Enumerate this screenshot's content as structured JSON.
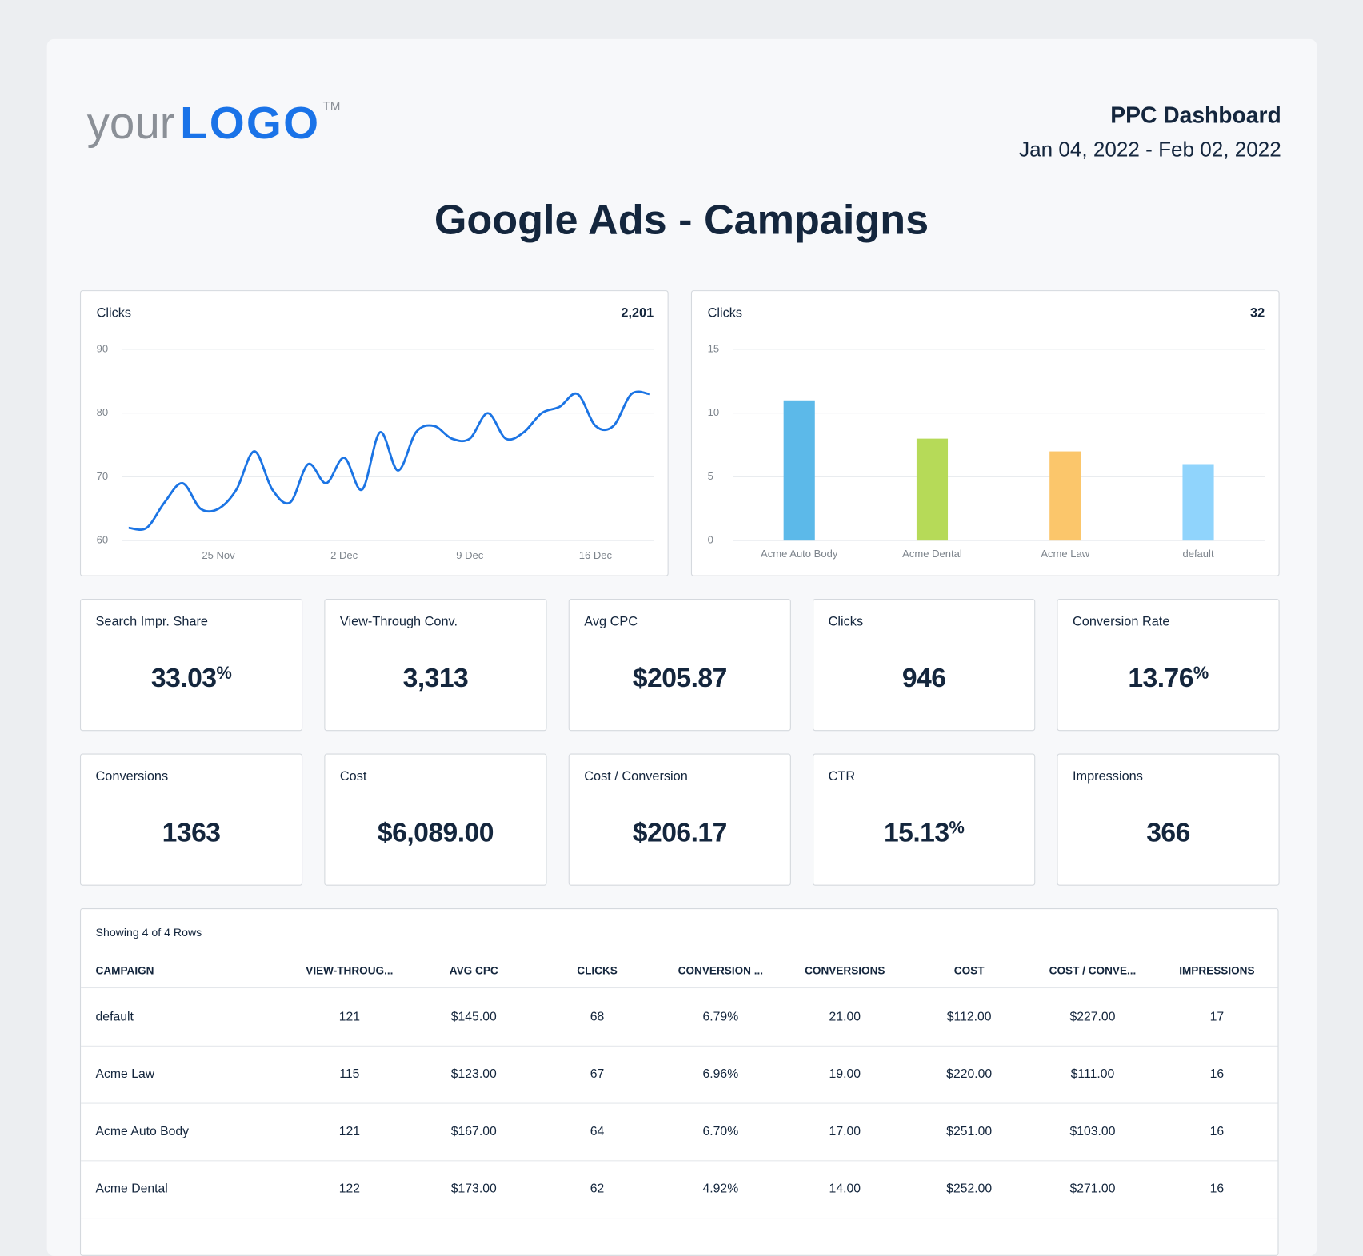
{
  "header": {
    "logo": {
      "your": "your",
      "logo": "LOGO",
      "tm": "TM"
    },
    "report_name": "PPC Dashboard",
    "date_range": "Jan 04, 2022 - Feb 02, 2022"
  },
  "title": "Google Ads - Campaigns",
  "chart_data": [
    {
      "type": "line",
      "title": "Clicks",
      "total": "2,201",
      "color": "#1b74e4",
      "grid": true,
      "categories": [
        null,
        null,
        null,
        null,
        null,
        "25 Nov",
        null,
        null,
        null,
        null,
        null,
        null,
        "2 Dec",
        null,
        null,
        null,
        null,
        null,
        null,
        "9 Dec",
        null,
        null,
        null,
        null,
        null,
        null,
        "16 Dec",
        null,
        null,
        null
      ],
      "values": [
        62,
        62,
        66,
        69,
        65,
        65,
        68,
        74,
        68,
        66,
        72,
        69,
        73,
        68,
        77,
        71,
        77,
        78,
        76,
        76,
        80,
        76,
        77,
        80,
        81,
        83,
        78,
        78,
        83,
        83
      ],
      "ylim": [
        60,
        90
      ],
      "yticks": [
        60,
        70,
        80,
        90
      ]
    },
    {
      "type": "bar",
      "title": "Clicks",
      "total": "32",
      "grid": true,
      "categories": [
        "Acme Auto Body",
        "Acme Dental",
        "Acme Law",
        "default"
      ],
      "values": [
        11,
        8,
        7,
        6
      ],
      "colors": [
        "#5cb9e9",
        "#b6da58",
        "#fbc66b",
        "#90d4fc"
      ],
      "ylim": [
        0,
        15
      ],
      "yticks": [
        0,
        5,
        10,
        15
      ]
    }
  ],
  "kpis": [
    {
      "label": "Search Impr. Share",
      "value": "33.03",
      "unit": "%"
    },
    {
      "label": "View-Through Conv.",
      "value": "3,313"
    },
    {
      "label": "Avg CPC",
      "value": "$205.87"
    },
    {
      "label": "Clicks",
      "value": "946"
    },
    {
      "label": "Conversion Rate",
      "value": "13.76",
      "unit": "%"
    },
    {
      "label": "Conversions",
      "value": "1363"
    },
    {
      "label": "Cost",
      "value": "$6,089.00"
    },
    {
      "label": "Cost / Conversion",
      "value": "$206.17"
    },
    {
      "label": "CTR",
      "value": "15.13",
      "unit": "%"
    },
    {
      "label": "Impressions",
      "value": "366"
    }
  ],
  "table": {
    "caption": "Showing 4 of 4 Rows",
    "columns": [
      "CAMPAIGN",
      "VIEW-THROUG...",
      "AVG CPC",
      "CLICKS",
      "CONVERSION ...",
      "CONVERSIONS",
      "COST",
      "COST / CONVE...",
      "IMPRESSIONS"
    ],
    "rows": [
      [
        "default",
        "121",
        "$145.00",
        "68",
        "6.79%",
        "21.00",
        "$112.00",
        "$227.00",
        "17"
      ],
      [
        "Acme Law",
        "115",
        "$123.00",
        "67",
        "6.96%",
        "19.00",
        "$220.00",
        "$111.00",
        "16"
      ],
      [
        "Acme Auto Body",
        "121",
        "$167.00",
        "64",
        "6.70%",
        "17.00",
        "$251.00",
        "$103.00",
        "16"
      ],
      [
        "Acme Dental",
        "122",
        "$173.00",
        "62",
        "4.92%",
        "14.00",
        "$252.00",
        "$271.00",
        "16"
      ]
    ]
  }
}
